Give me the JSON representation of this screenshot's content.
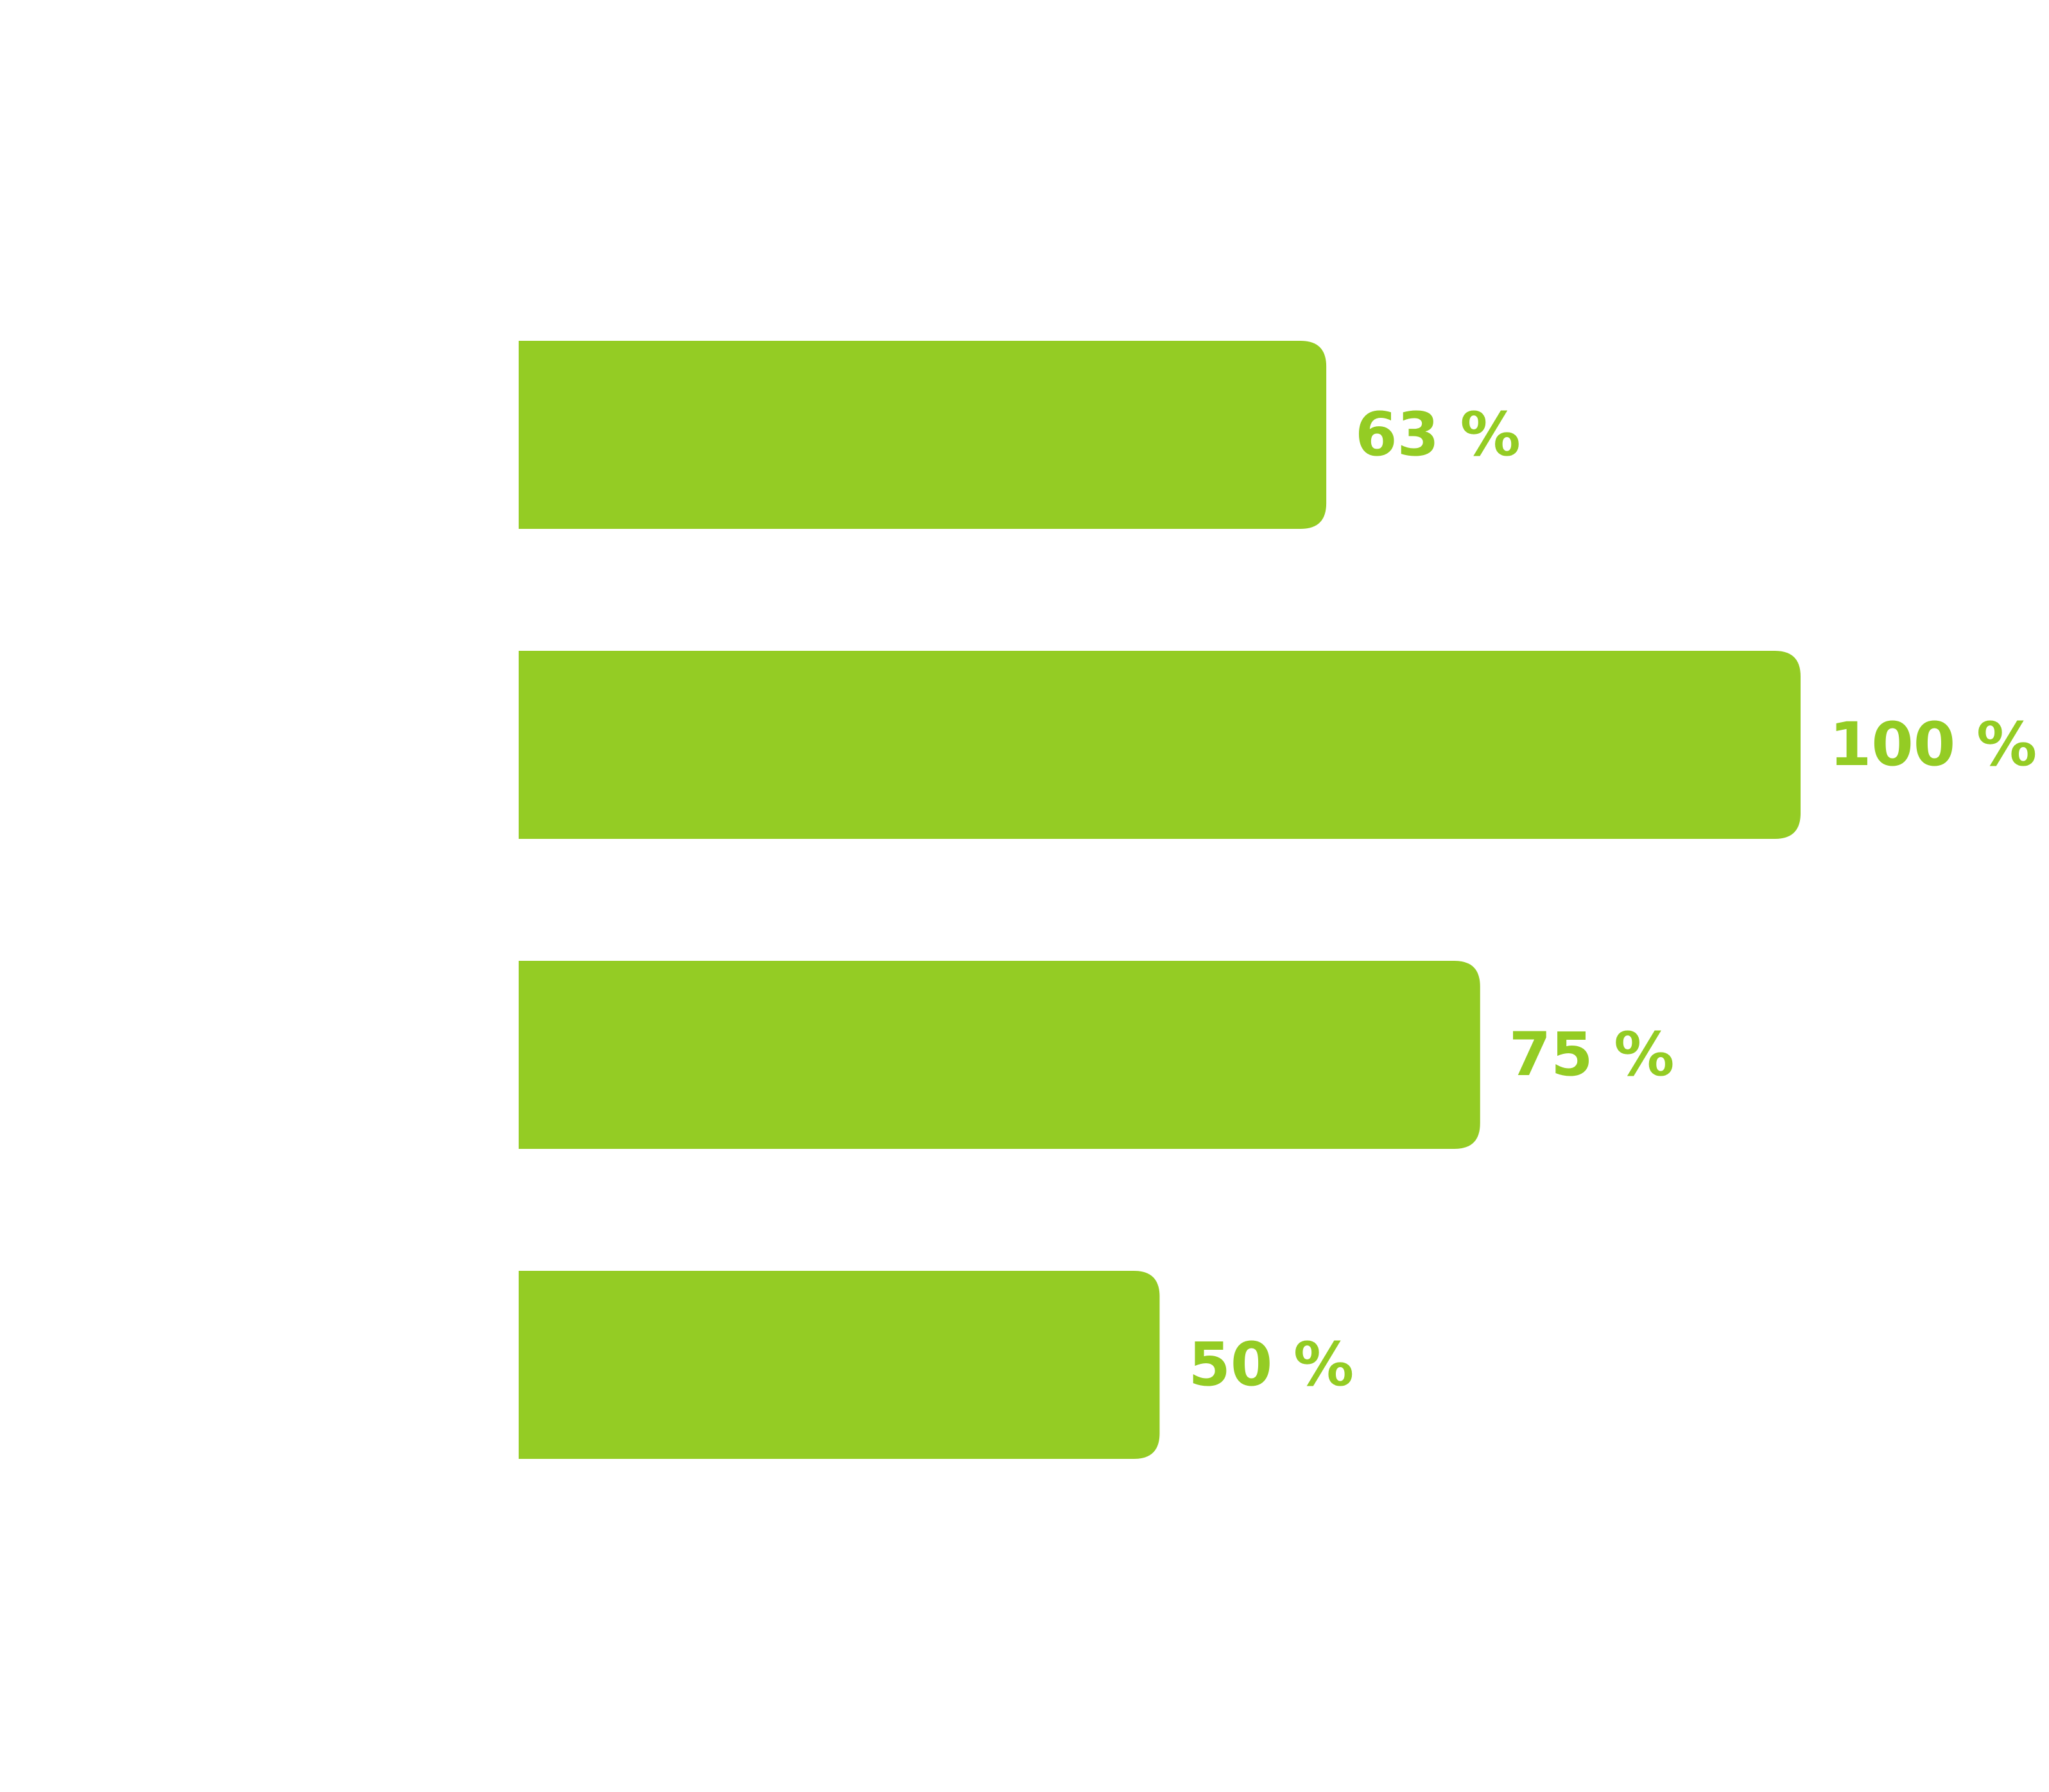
{
  "chart_data": {
    "type": "bar",
    "orientation": "horizontal",
    "categories": [
      "",
      "",
      "",
      ""
    ],
    "values": [
      63,
      100,
      75,
      50
    ],
    "labels": [
      "63 %",
      "100 %",
      "75 %",
      "50 %"
    ],
    "xlim": [
      0,
      100
    ],
    "grid": false,
    "axes_visible": false
  },
  "colors": {
    "bar": "#94cc24",
    "label": "#94cc24",
    "background": "#ffffff"
  }
}
